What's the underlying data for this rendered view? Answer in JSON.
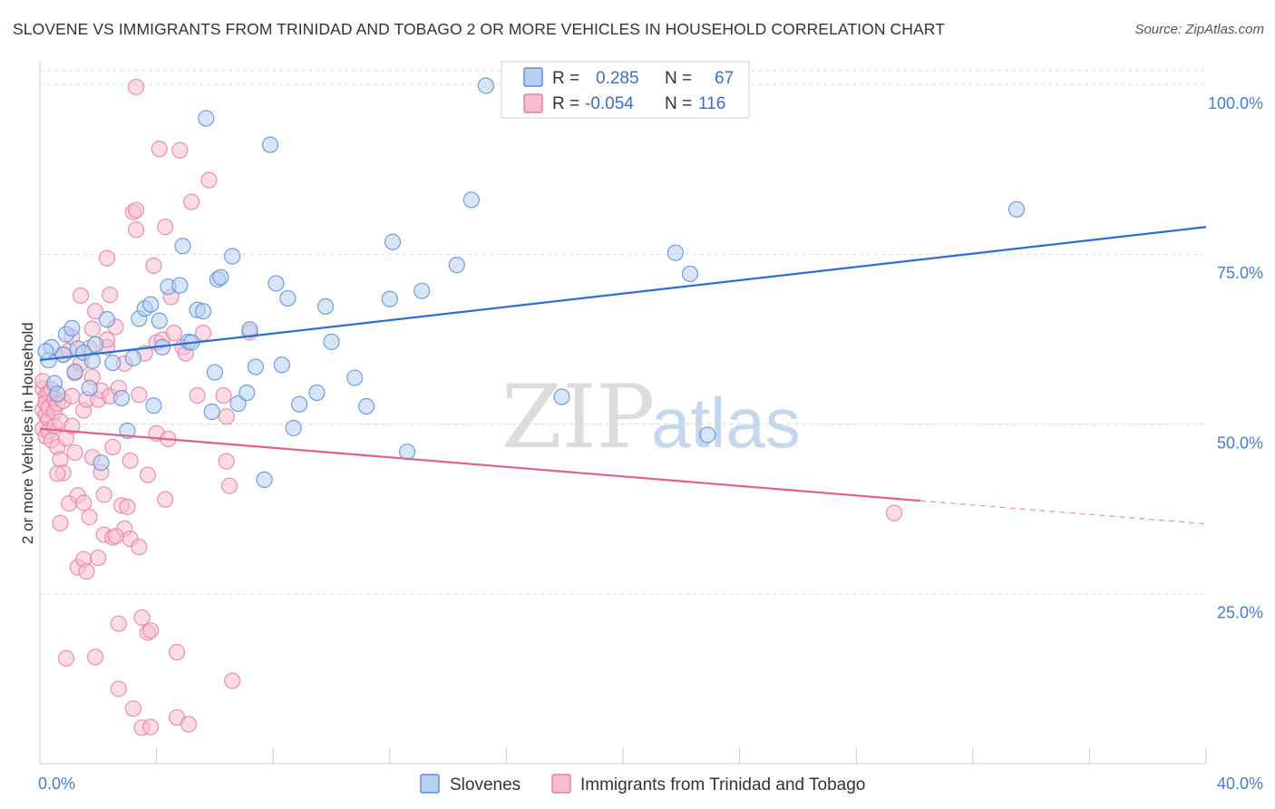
{
  "title": "SLOVENE VS IMMIGRANTS FROM TRINIDAD AND TOBAGO 2 OR MORE VEHICLES IN HOUSEHOLD CORRELATION CHART",
  "source": "Source: ZipAtlas.com",
  "watermark": {
    "zip": "ZIP",
    "atlas": "atlas"
  },
  "colors": {
    "blue": "#5b8fd8",
    "blue_fill": "#b8cff0",
    "blue_line": "#2b6fcc",
    "pink": "#e87fa3",
    "pink_fill": "#f6bdd1",
    "pink_line": "#e0608f",
    "grid": "#d9d9d9",
    "axis_text": "#4a7cc9"
  },
  "legend": {
    "rows": [
      {
        "r_label": "R =",
        "r_value": "0.285",
        "n_label": "N =",
        "n_value": "67",
        "color": "blue"
      },
      {
        "r_label": "R =",
        "r_value": "-0.054",
        "n_label": "N =",
        "n_value": "116",
        "color": "pink"
      }
    ]
  },
  "bottom_legend": [
    {
      "label": "Slovenes",
      "color": "blue"
    },
    {
      "label": "Immigrants from Trinidad and Tobago",
      "color": "pink"
    }
  ],
  "chart_data": {
    "type": "scatter",
    "title": "SLOVENE VS IMMIGRANTS FROM TRINIDAD AND TOBAGO 2 OR MORE VEHICLES IN HOUSEHOLD CORRELATION CHART",
    "xlabel": "",
    "ylabel": "2 or more Vehicles in Household",
    "xlim": [
      0,
      40
    ],
    "ylim": [
      0,
      102
    ],
    "x_tick_labels": [
      "0.0%",
      "40.0%"
    ],
    "y_ticks": [
      {
        "value": 100,
        "label": "100.0%"
      },
      {
        "value": 75,
        "label": "75.0%"
      },
      {
        "value": 50,
        "label": "50.0%"
      },
      {
        "value": 25,
        "label": "25.0%"
      }
    ],
    "x_minor_ticks": [
      0,
      4,
      8,
      12,
      16,
      20,
      24,
      28,
      32,
      36,
      40
    ],
    "grid": true,
    "legend_position": "top-center",
    "series": [
      {
        "name": "Slovenes",
        "color": "blue",
        "trend": {
          "x": [
            0,
            40
          ],
          "y": [
            59.4,
            79.0
          ],
          "dashed_from": null
        },
        "points": [
          [
            0.3,
            59.4
          ],
          [
            0.4,
            61.3
          ],
          [
            0.5,
            56.0
          ],
          [
            0.6,
            54.4
          ],
          [
            0.8,
            60.2
          ],
          [
            0.9,
            63.2
          ],
          [
            1.1,
            64.1
          ],
          [
            1.2,
            57.7
          ],
          [
            1.3,
            61.1
          ],
          [
            1.5,
            60.5
          ],
          [
            1.7,
            55.3
          ],
          [
            1.8,
            59.3
          ],
          [
            1.9,
            61.7
          ],
          [
            2.1,
            44.3
          ],
          [
            2.3,
            65.4
          ],
          [
            2.5,
            59.0
          ],
          [
            2.8,
            53.8
          ],
          [
            3.0,
            49.0
          ],
          [
            3.2,
            59.7
          ],
          [
            3.4,
            65.5
          ],
          [
            3.6,
            67.0
          ],
          [
            3.8,
            67.6
          ],
          [
            3.9,
            52.7
          ],
          [
            4.1,
            65.2
          ],
          [
            4.2,
            61.3
          ],
          [
            4.4,
            70.2
          ],
          [
            4.8,
            70.4
          ],
          [
            4.9,
            76.2
          ],
          [
            5.1,
            62.1
          ],
          [
            5.2,
            62.0
          ],
          [
            5.4,
            66.8
          ],
          [
            5.6,
            66.6
          ],
          [
            5.7,
            95.0
          ],
          [
            5.9,
            51.8
          ],
          [
            6.0,
            57.6
          ],
          [
            6.1,
            71.3
          ],
          [
            6.2,
            71.6
          ],
          [
            6.6,
            74.7
          ],
          [
            6.8,
            53.0
          ],
          [
            7.1,
            54.6
          ],
          [
            7.2,
            63.9
          ],
          [
            7.4,
            58.4
          ],
          [
            7.7,
            41.8
          ],
          [
            7.9,
            91.1
          ],
          [
            8.1,
            70.7
          ],
          [
            8.3,
            58.7
          ],
          [
            8.5,
            68.5
          ],
          [
            8.7,
            49.4
          ],
          [
            8.9,
            52.9
          ],
          [
            9.5,
            54.6
          ],
          [
            9.8,
            67.3
          ],
          [
            10.0,
            62.1
          ],
          [
            10.8,
            56.8
          ],
          [
            11.2,
            52.6
          ],
          [
            12.0,
            68.4
          ],
          [
            12.1,
            76.8
          ],
          [
            12.6,
            45.9
          ],
          [
            13.1,
            69.6
          ],
          [
            14.3,
            73.4
          ],
          [
            14.8,
            83.0
          ],
          [
            15.3,
            99.8
          ],
          [
            17.9,
            54.0
          ],
          [
            21.8,
            75.2
          ],
          [
            22.3,
            72.1
          ],
          [
            22.9,
            48.4
          ],
          [
            33.5,
            81.6
          ],
          [
            0.2,
            60.7
          ]
        ]
      },
      {
        "name": "Immigrants from Trinidad and Tobago",
        "color": "pink",
        "trend": {
          "x": [
            0,
            30.2
          ],
          "y": [
            49.3,
            38.7
          ],
          "dashed_to": [
            40,
            35.3
          ]
        },
        "points": [
          [
            0.1,
            55.2
          ],
          [
            0.1,
            52.1
          ],
          [
            0.1,
            49.3
          ],
          [
            0.1,
            56.3
          ],
          [
            0.2,
            54.1
          ],
          [
            0.2,
            48.2
          ],
          [
            0.2,
            51.3
          ],
          [
            0.2,
            53.1
          ],
          [
            0.3,
            50.7
          ],
          [
            0.3,
            54.6
          ],
          [
            0.3,
            52.4
          ],
          [
            0.3,
            48.9
          ],
          [
            0.4,
            55.1
          ],
          [
            0.4,
            47.6
          ],
          [
            0.5,
            53.7
          ],
          [
            0.5,
            49.7
          ],
          [
            0.5,
            51.8
          ],
          [
            0.6,
            46.6
          ],
          [
            0.6,
            53.0
          ],
          [
            0.7,
            44.8
          ],
          [
            0.7,
            35.4
          ],
          [
            0.7,
            50.4
          ],
          [
            0.8,
            60.2
          ],
          [
            0.8,
            42.8
          ],
          [
            0.8,
            53.4
          ],
          [
            0.9,
            15.5
          ],
          [
            0.9,
            47.9
          ],
          [
            1.0,
            60.8
          ],
          [
            1.0,
            38.3
          ],
          [
            1.1,
            49.7
          ],
          [
            1.1,
            54.1
          ],
          [
            1.2,
            45.8
          ],
          [
            1.2,
            57.5
          ],
          [
            1.3,
            28.9
          ],
          [
            1.3,
            39.5
          ],
          [
            1.4,
            58.9
          ],
          [
            1.4,
            68.9
          ],
          [
            1.5,
            30.1
          ],
          [
            1.5,
            52.0
          ],
          [
            1.5,
            38.4
          ],
          [
            1.6,
            28.3
          ],
          [
            1.6,
            53.6
          ],
          [
            1.7,
            36.3
          ],
          [
            1.8,
            45.1
          ],
          [
            1.8,
            56.9
          ],
          [
            1.8,
            64.0
          ],
          [
            1.9,
            15.7
          ],
          [
            1.9,
            66.6
          ],
          [
            2.0,
            30.3
          ],
          [
            2.0,
            53.6
          ],
          [
            2.1,
            54.9
          ],
          [
            2.1,
            42.9
          ],
          [
            2.2,
            33.7
          ],
          [
            2.2,
            39.6
          ],
          [
            2.3,
            61.3
          ],
          [
            2.3,
            62.4
          ],
          [
            2.3,
            74.4
          ],
          [
            2.4,
            54.1
          ],
          [
            2.4,
            69.0
          ],
          [
            2.5,
            46.6
          ],
          [
            2.5,
            33.3
          ],
          [
            2.6,
            64.3
          ],
          [
            2.7,
            11.0
          ],
          [
            2.7,
            20.6
          ],
          [
            2.7,
            55.3
          ],
          [
            2.8,
            38.0
          ],
          [
            2.9,
            34.6
          ],
          [
            2.9,
            58.9
          ],
          [
            3.0,
            37.8
          ],
          [
            3.1,
            44.6
          ],
          [
            3.1,
            33.1
          ],
          [
            3.2,
            8.1
          ],
          [
            3.2,
            81.2
          ],
          [
            3.3,
            78.6
          ],
          [
            3.3,
            81.5
          ],
          [
            3.3,
            99.6
          ],
          [
            3.4,
            54.3
          ],
          [
            3.4,
            31.9
          ],
          [
            3.5,
            5.3
          ],
          [
            3.5,
            21.5
          ],
          [
            3.6,
            60.4
          ],
          [
            3.7,
            19.3
          ],
          [
            3.7,
            42.5
          ],
          [
            3.8,
            5.4
          ],
          [
            3.9,
            73.3
          ],
          [
            4.0,
            48.6
          ],
          [
            4.0,
            62.0
          ],
          [
            4.1,
            90.5
          ],
          [
            4.2,
            62.4
          ],
          [
            4.3,
            79.0
          ],
          [
            4.3,
            38.9
          ],
          [
            4.4,
            47.8
          ],
          [
            4.5,
            68.7
          ],
          [
            4.6,
            63.4
          ],
          [
            4.7,
            16.4
          ],
          [
            4.7,
            6.8
          ],
          [
            4.8,
            90.3
          ],
          [
            4.9,
            61.3
          ],
          [
            5.0,
            60.4
          ],
          [
            5.1,
            5.8
          ],
          [
            5.2,
            82.7
          ],
          [
            5.4,
            54.2
          ],
          [
            5.6,
            63.4
          ],
          [
            5.8,
            85.9
          ],
          [
            6.3,
            54.2
          ],
          [
            6.4,
            51.1
          ],
          [
            6.5,
            40.9
          ],
          [
            6.6,
            12.2
          ],
          [
            7.2,
            63.5
          ],
          [
            29.3,
            36.9
          ],
          [
            1.1,
            62.8
          ],
          [
            3.8,
            19.6
          ],
          [
            6.4,
            44.5
          ],
          [
            0.6,
            42.7
          ],
          [
            2.6,
            33.5
          ],
          [
            1.7,
            61.2
          ]
        ]
      }
    ]
  }
}
